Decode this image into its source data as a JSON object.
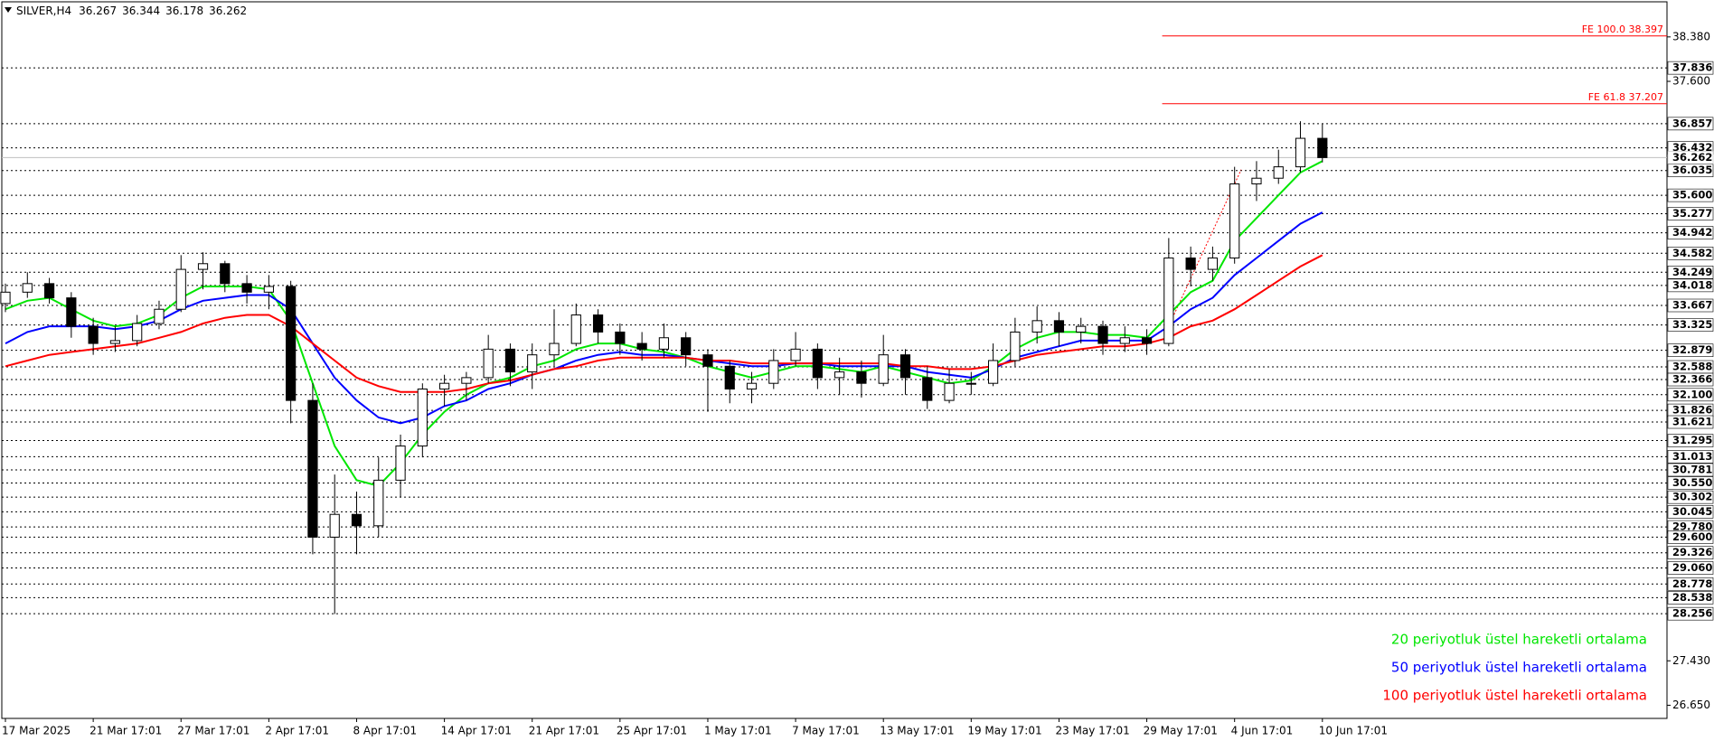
{
  "chart_data": {
    "type": "candlestick",
    "title": "SILVER,H4",
    "quote": [
      36.267,
      36.344,
      36.178,
      36.262
    ],
    "open": [
      33.7,
      33.9,
      34.05,
      33.8,
      33.3,
      33.0,
      33.05,
      33.35,
      33.6,
      34.3,
      34.4,
      34.05,
      33.9,
      34.0,
      32.0,
      29.6,
      30.0,
      29.8,
      30.6,
      31.2,
      32.2,
      32.3,
      32.4,
      32.9,
      32.5,
      32.8,
      33.0,
      33.5,
      33.2,
      33.0,
      32.9,
      33.1,
      32.8,
      32.6,
      32.2,
      32.3,
      32.7,
      32.9,
      32.4,
      32.5,
      32.3,
      32.8,
      32.4,
      32.0,
      32.3,
      32.3,
      32.7,
      33.2,
      33.4,
      33.2,
      33.3,
      33.0,
      33.1,
      33.0,
      34.5,
      34.3,
      34.5,
      35.8,
      35.9,
      36.1,
      36.6
    ],
    "high": [
      34.05,
      34.25,
      34.15,
      33.9,
      33.45,
      33.3,
      33.5,
      33.75,
      34.55,
      34.6,
      34.45,
      34.2,
      34.2,
      34.1,
      32.3,
      30.7,
      30.4,
      31.0,
      31.4,
      32.3,
      32.45,
      32.5,
      33.15,
      33.0,
      33.0,
      33.6,
      33.7,
      33.6,
      33.35,
      33.2,
      33.35,
      33.2,
      32.9,
      32.7,
      32.5,
      32.9,
      33.2,
      33.0,
      32.75,
      32.7,
      33.15,
      32.9,
      32.6,
      32.55,
      32.5,
      33.0,
      33.45,
      33.65,
      33.55,
      33.45,
      33.4,
      33.3,
      33.25,
      34.85,
      34.7,
      34.7,
      36.1,
      36.2,
      36.4,
      36.9,
      36.85
    ],
    "low": [
      33.55,
      33.8,
      33.7,
      33.1,
      32.8,
      32.85,
      32.95,
      33.25,
      33.55,
      33.95,
      33.9,
      33.7,
      33.6,
      31.6,
      29.3,
      28.25,
      29.3,
      29.6,
      30.3,
      31.0,
      31.9,
      32.0,
      32.3,
      32.25,
      32.2,
      32.6,
      32.95,
      33.0,
      32.8,
      32.7,
      32.75,
      32.6,
      31.8,
      31.95,
      31.95,
      32.2,
      32.6,
      32.2,
      32.1,
      32.05,
      32.25,
      32.1,
      31.85,
      31.95,
      32.1,
      32.25,
      32.6,
      33.0,
      32.95,
      33.0,
      32.8,
      32.85,
      32.8,
      32.95,
      34.0,
      34.1,
      34.4,
      35.5,
      35.8,
      36.0,
      36.178
    ],
    "close": [
      33.9,
      34.05,
      33.8,
      33.3,
      33.0,
      33.05,
      33.35,
      33.6,
      34.3,
      34.4,
      34.05,
      33.9,
      34.0,
      32.0,
      29.6,
      30.0,
      29.8,
      30.6,
      31.2,
      32.2,
      32.3,
      32.4,
      32.9,
      32.5,
      32.8,
      33.0,
      33.5,
      33.2,
      33.0,
      32.9,
      33.1,
      32.8,
      32.6,
      32.2,
      32.3,
      32.7,
      32.9,
      32.4,
      32.5,
      32.3,
      32.8,
      32.4,
      32.0,
      32.3,
      32.3,
      32.7,
      33.2,
      33.4,
      33.2,
      33.3,
      33.0,
      33.1,
      33.0,
      34.5,
      34.3,
      34.5,
      35.8,
      35.9,
      36.1,
      36.6,
      36.262
    ],
    "series": [
      {
        "name": "20 periyotluk üstel hareketli ortalama",
        "color": "#00e600",
        "values": [
          33.6,
          33.75,
          33.8,
          33.6,
          33.4,
          33.3,
          33.35,
          33.5,
          33.8,
          34.0,
          34.0,
          34.0,
          33.95,
          33.4,
          32.3,
          31.2,
          30.6,
          30.5,
          30.9,
          31.4,
          31.8,
          32.1,
          32.3,
          32.4,
          32.6,
          32.7,
          32.9,
          33.0,
          33.0,
          32.9,
          32.85,
          32.75,
          32.6,
          32.5,
          32.4,
          32.5,
          32.6,
          32.6,
          32.55,
          32.5,
          32.6,
          32.5,
          32.4,
          32.3,
          32.35,
          32.6,
          32.9,
          33.1,
          33.2,
          33.2,
          33.15,
          33.15,
          33.1,
          33.5,
          33.9,
          34.1,
          34.8,
          35.2,
          35.6,
          36.0,
          36.2
        ]
      },
      {
        "name": "50 periyotluk üstel hareketli ortalama",
        "color": "#0000ff",
        "values": [
          33.0,
          33.2,
          33.3,
          33.3,
          33.3,
          33.25,
          33.3,
          33.4,
          33.6,
          33.75,
          33.8,
          33.85,
          33.85,
          33.6,
          33.0,
          32.4,
          32.0,
          31.7,
          31.6,
          31.7,
          31.9,
          32.0,
          32.2,
          32.3,
          32.45,
          32.55,
          32.7,
          32.8,
          32.85,
          32.8,
          32.8,
          32.75,
          32.7,
          32.65,
          32.6,
          32.6,
          32.65,
          32.65,
          32.6,
          32.6,
          32.6,
          32.6,
          32.5,
          32.45,
          32.4,
          32.55,
          32.75,
          32.85,
          32.95,
          33.05,
          33.05,
          33.05,
          33.05,
          33.3,
          33.6,
          33.8,
          34.2,
          34.5,
          34.8,
          35.1,
          35.3
        ]
      },
      {
        "name": "100 periyotluk üstel hareketli ortalama",
        "color": "#ff0000",
        "values": [
          32.6,
          32.7,
          32.8,
          32.85,
          32.9,
          32.95,
          33.0,
          33.1,
          33.2,
          33.35,
          33.45,
          33.5,
          33.5,
          33.3,
          33.0,
          32.7,
          32.4,
          32.25,
          32.15,
          32.15,
          32.15,
          32.2,
          32.3,
          32.35,
          32.45,
          32.55,
          32.6,
          32.7,
          32.75,
          32.75,
          32.75,
          32.75,
          32.7,
          32.7,
          32.65,
          32.65,
          32.65,
          32.65,
          32.65,
          32.65,
          32.65,
          32.6,
          32.6,
          32.55,
          32.55,
          32.6,
          32.7,
          32.8,
          32.85,
          32.9,
          32.95,
          32.95,
          33.0,
          33.1,
          33.3,
          33.4,
          33.6,
          33.85,
          34.1,
          34.35,
          34.55
        ]
      }
    ],
    "legend": "bottom-right",
    "xlim": [
      -0.165,
      75.7
    ],
    "xticks": [
      {
        "value": 0,
        "label": "17 Mar 2025"
      },
      {
        "value": 4,
        "label": "21 Mar 17:01"
      },
      {
        "value": 8,
        "label": "27 Mar 17:01"
      },
      {
        "value": 12,
        "label": "2 Apr 17:01"
      },
      {
        "value": 16,
        "label": "8 Apr 17:01"
      },
      {
        "value": 20,
        "label": "14 Apr 17:01"
      },
      {
        "value": 24,
        "label": "21 Apr 17:01"
      },
      {
        "value": 28,
        "label": "25 Apr 17:01"
      },
      {
        "value": 32,
        "label": "1 May 17:01"
      },
      {
        "value": 36,
        "label": "7 May 17:01"
      },
      {
        "value": 40,
        "label": "13 May 17:01"
      },
      {
        "value": 44,
        "label": "19 May 17:01"
      },
      {
        "value": 48,
        "label": "23 May 17:01"
      },
      {
        "value": 52,
        "label": "29 May 17:01"
      },
      {
        "value": 56,
        "label": "4 Jun 17:01"
      },
      {
        "value": 60,
        "label": "10 Jun 17:01"
      }
    ],
    "ylim": [
      26.419,
      38.996
    ],
    "yticks": [
      {
        "value": 38.38,
        "label": "38.380"
      },
      {
        "value": 37.6,
        "label": "37.600"
      },
      {
        "value": 27.43,
        "label": "27.430"
      },
      {
        "value": 26.65,
        "label": "26.650"
      }
    ],
    "levels": [
      37.836,
      36.857,
      36.432,
      36.035,
      {
        "value": 35.6,
        "label": "35.600"
      },
      35.277,
      34.942,
      34.582,
      34.249,
      34.018,
      33.667,
      33.325,
      32.879,
      32.588,
      32.366,
      {
        "value": 32.1,
        "label": "32.100"
      },
      31.826,
      31.621,
      31.295,
      31.013,
      30.781,
      {
        "value": 30.55,
        "label": "30.550"
      },
      30.302,
      30.045,
      {
        "value": 29.78,
        "label": "29.780"
      },
      {
        "value": 29.6,
        "label": "29.600"
      },
      29.326,
      {
        "value": 29.06,
        "label": "29.060"
      },
      28.778,
      28.538,
      28.256
    ],
    "fe_levels": [
      {
        "label": "FE 100.0 38.397",
        "value": 38.397,
        "x_start": 52.7
      },
      {
        "label": "FE 61.8 37.207",
        "value": 37.207,
        "x_start": 52.7
      }
    ],
    "fe_trend": {
      "x": [
        53.1,
        56.3
      ],
      "y": [
        33.39,
        36.05
      ]
    }
  }
}
